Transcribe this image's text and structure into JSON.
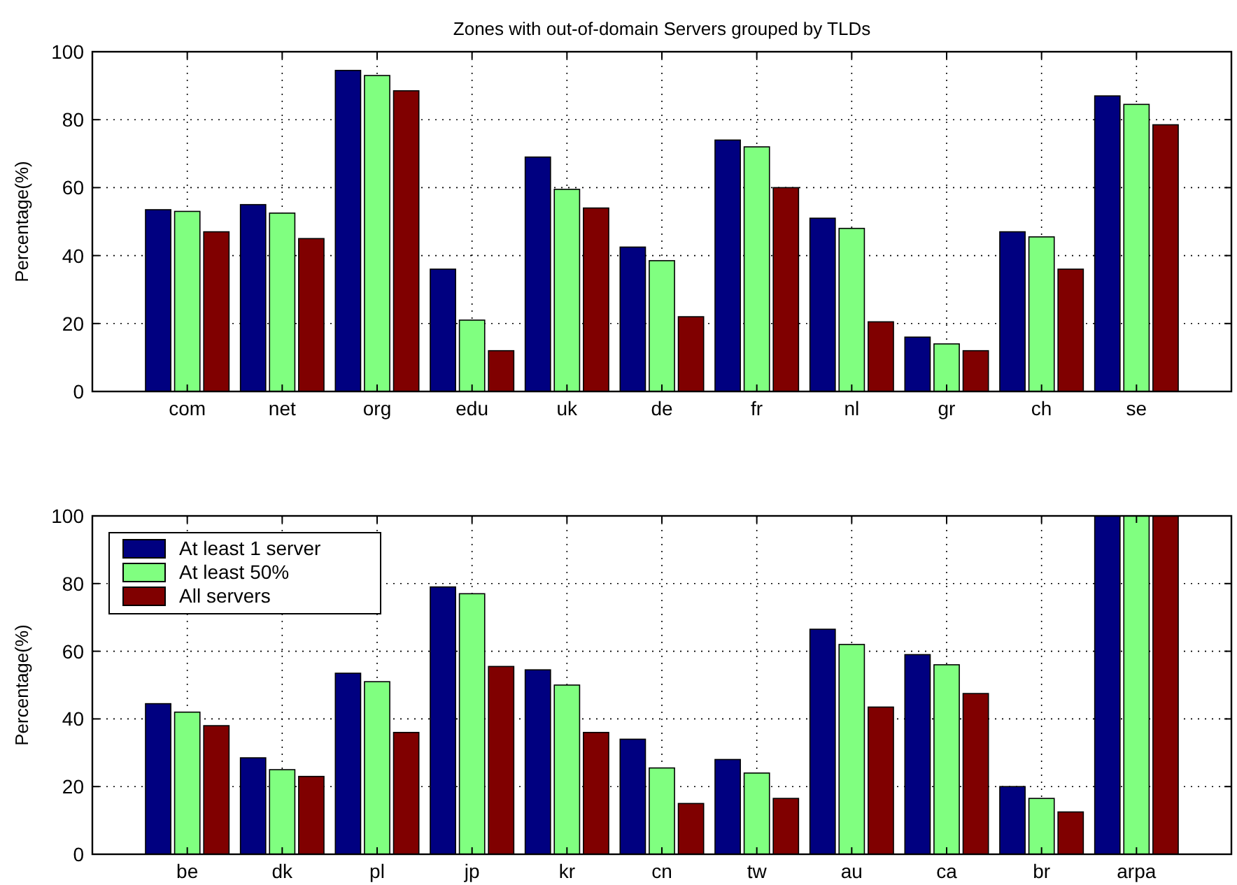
{
  "chart_data": [
    {
      "type": "bar",
      "title": "Zones with out-of-domain Servers grouped by TLDs",
      "ylabel": "Percentage(%)",
      "categories": [
        "com",
        "net",
        "org",
        "edu",
        "uk",
        "de",
        "fr",
        "nl",
        "gr",
        "ch",
        "se"
      ],
      "series": [
        {
          "color": "#000080",
          "values": [
            53.5,
            55,
            94.5,
            36,
            69,
            42.5,
            74,
            51,
            16,
            47,
            87
          ]
        },
        {
          "color": "#80ff80",
          "values": [
            53,
            52.5,
            93,
            21,
            59.5,
            38.5,
            72,
            48,
            14,
            45.5,
            84.5
          ]
        },
        {
          "color": "#800000",
          "values": [
            47,
            45,
            88.5,
            12,
            54,
            22,
            60,
            20.5,
            12,
            36,
            78.5
          ]
        }
      ],
      "ylim": [
        0,
        100
      ],
      "yticks": [
        0,
        20,
        40,
        60,
        80,
        100
      ],
      "grid": true,
      "legend": false
    },
    {
      "type": "bar",
      "ylabel": "Percentage(%)",
      "categories": [
        "be",
        "dk",
        "pl",
        "jp",
        "kr",
        "cn",
        "tw",
        "au",
        "ca",
        "br",
        "arpa"
      ],
      "series": [
        {
          "name": "At least 1 server",
          "color": "#000080",
          "values": [
            44.5,
            28.5,
            53.5,
            79,
            54.5,
            34,
            28,
            66.5,
            59,
            20,
            100
          ]
        },
        {
          "name": "At least 50%",
          "color": "#80ff80",
          "values": [
            42,
            25,
            51,
            77,
            50,
            25.5,
            24,
            62,
            56,
            16.5,
            100
          ]
        },
        {
          "name": "All servers",
          "color": "#800000",
          "values": [
            38,
            23,
            36,
            55.5,
            36,
            15,
            16.5,
            43.5,
            47.5,
            12.5,
            100
          ]
        }
      ],
      "ylim": [
        0,
        100
      ],
      "yticks": [
        0,
        20,
        40,
        60,
        80,
        100
      ],
      "grid": true,
      "legend": "top left"
    }
  ]
}
